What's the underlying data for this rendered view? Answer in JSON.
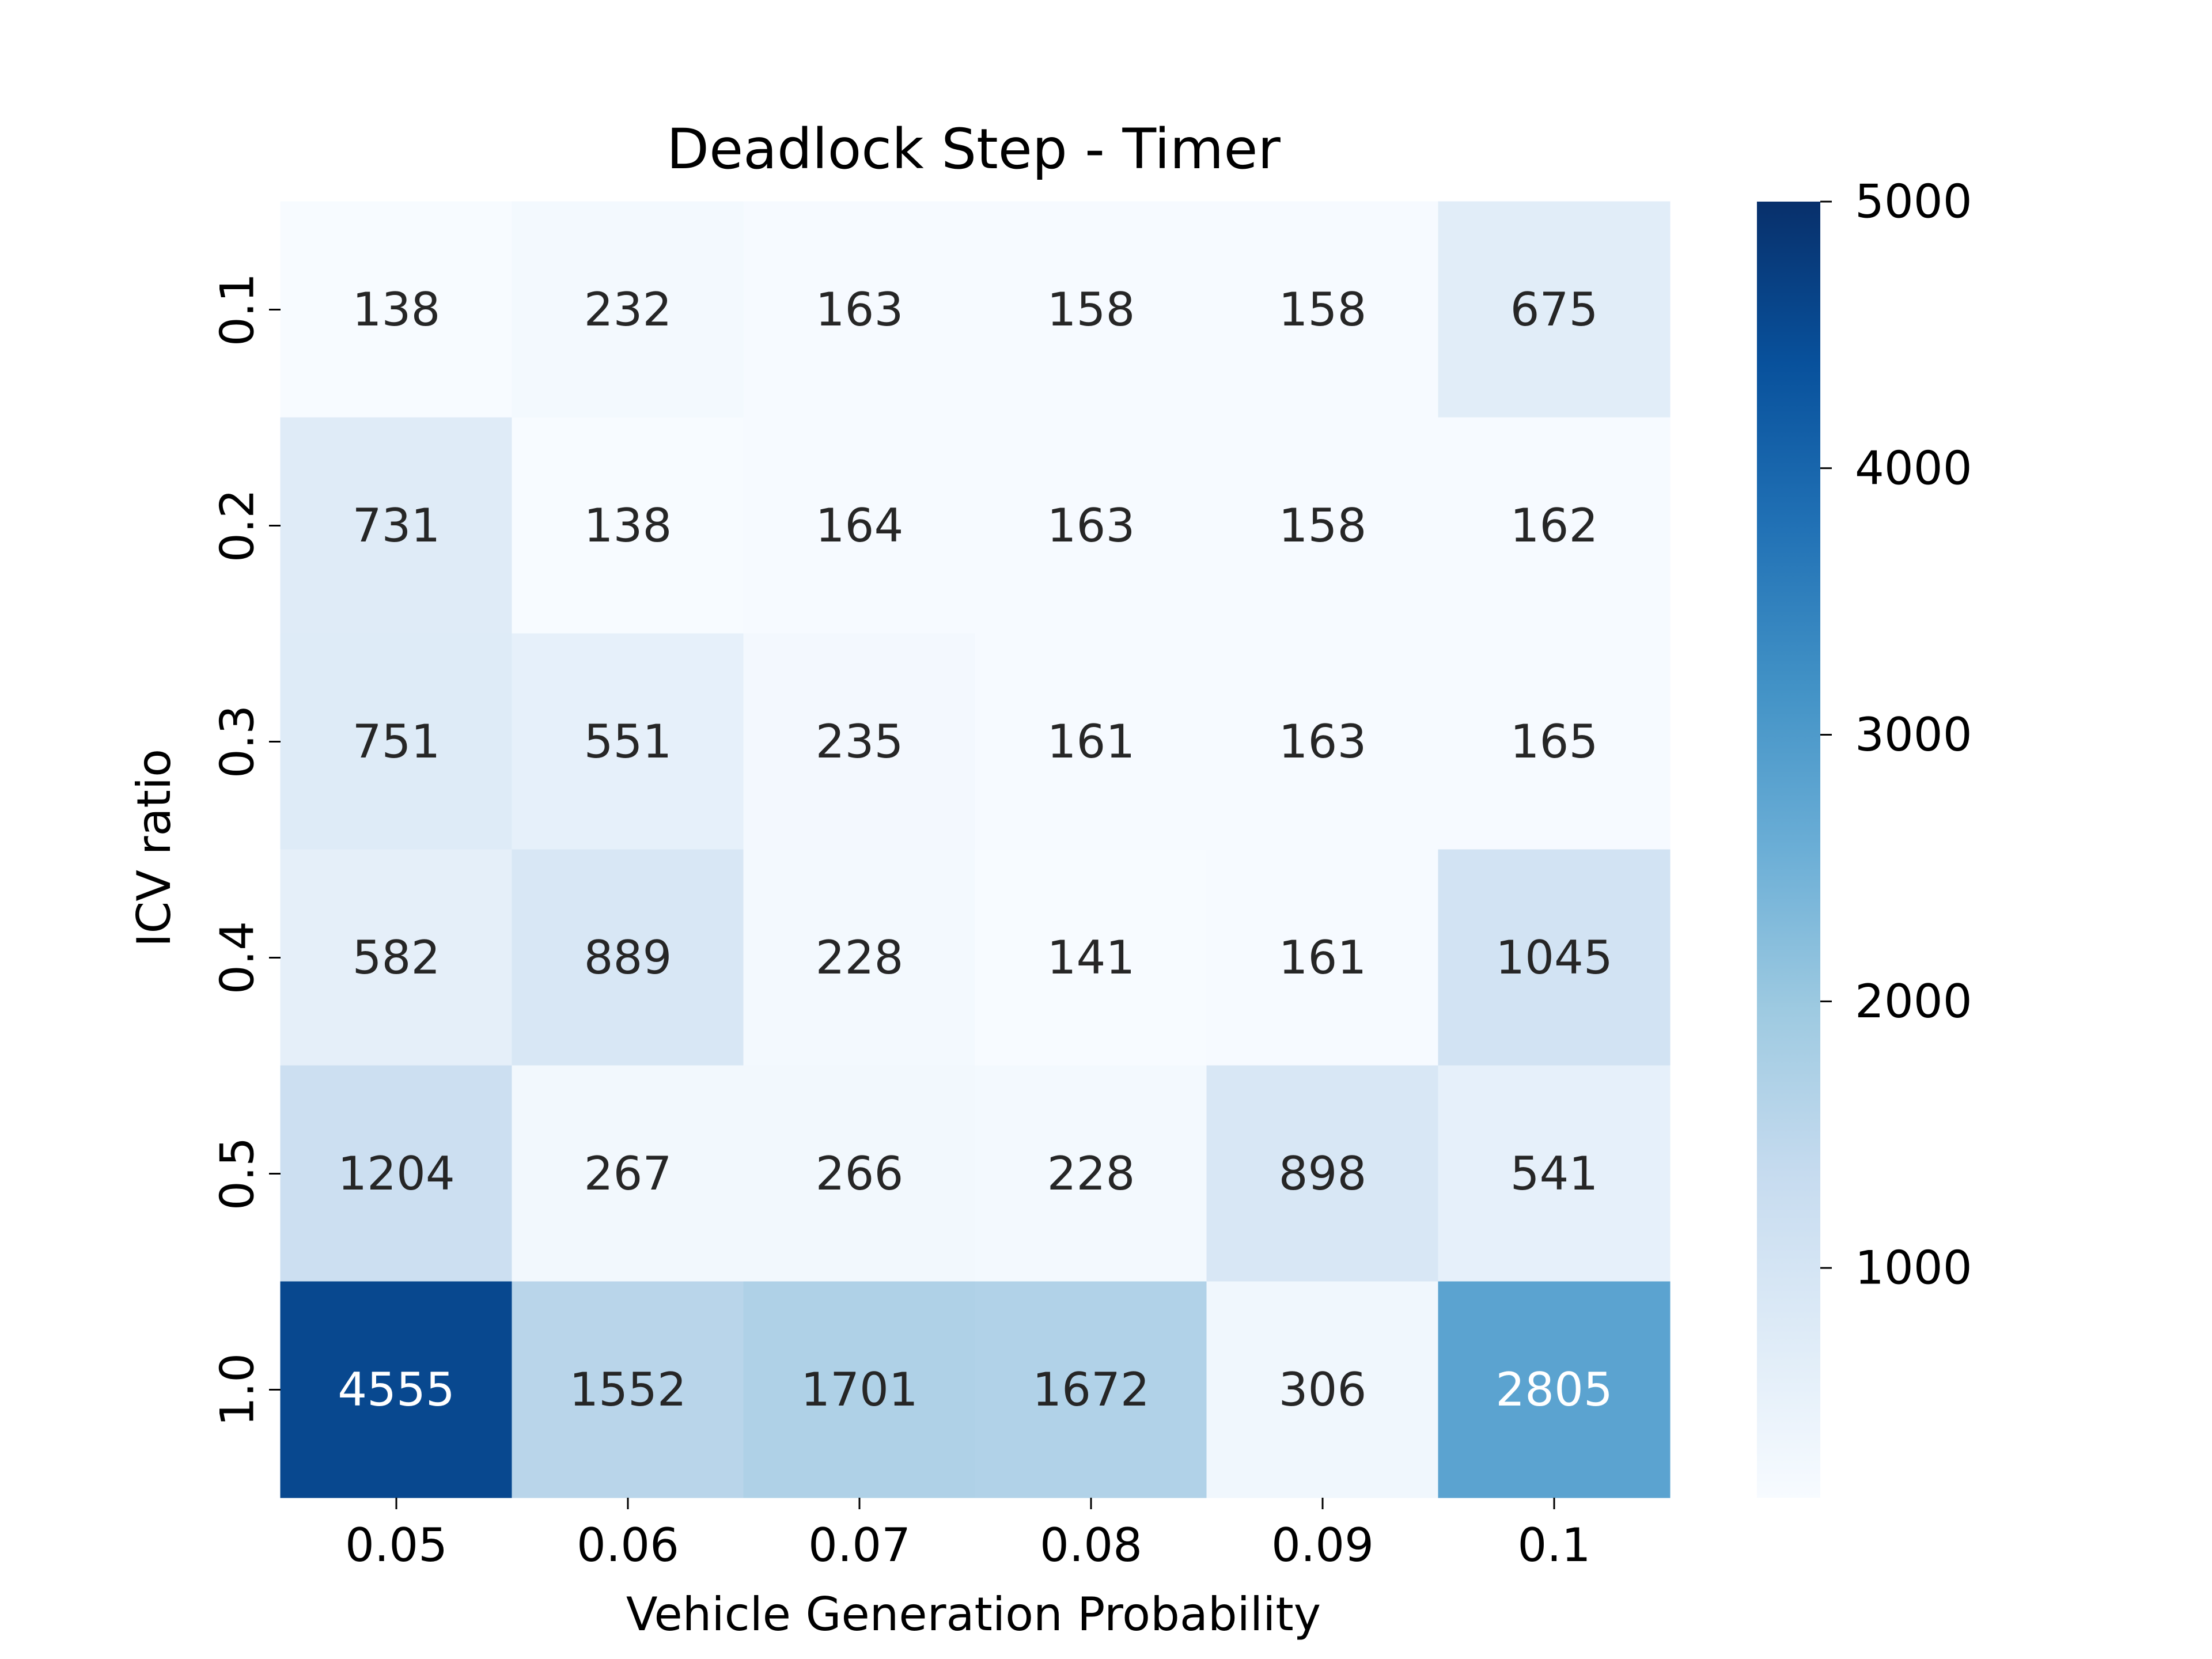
{
  "chart_data": {
    "type": "heatmap",
    "title": "Deadlock Step - Timer",
    "xlabel": "Vehicle Generation Probability",
    "ylabel": "ICV ratio",
    "x_categories": [
      "0.05",
      "0.06",
      "0.07",
      "0.08",
      "0.09",
      "0.1"
    ],
    "y_categories": [
      "0.1",
      "0.2",
      "0.3",
      "0.4",
      "0.5",
      "1.0"
    ],
    "values": [
      [
        138,
        232,
        163,
        158,
        158,
        675
      ],
      [
        731,
        138,
        164,
        163,
        158,
        162
      ],
      [
        751,
        551,
        235,
        161,
        163,
        165
      ],
      [
        582,
        889,
        228,
        141,
        161,
        1045
      ],
      [
        1204,
        267,
        266,
        228,
        898,
        541
      ],
      [
        4555,
        1552,
        1701,
        1672,
        306,
        2805
      ]
    ],
    "colormap": "Blues",
    "colorbar": {
      "range": [
        138,
        5000
      ],
      "ticks": [
        1000,
        2000,
        3000,
        4000,
        5000
      ]
    },
    "grid": false,
    "legend": "colorbar-right",
    "colors": {
      "low": "#f7fbff",
      "high": "#08306b",
      "text_dark": "#262626",
      "text_light": "#ffffff"
    }
  }
}
